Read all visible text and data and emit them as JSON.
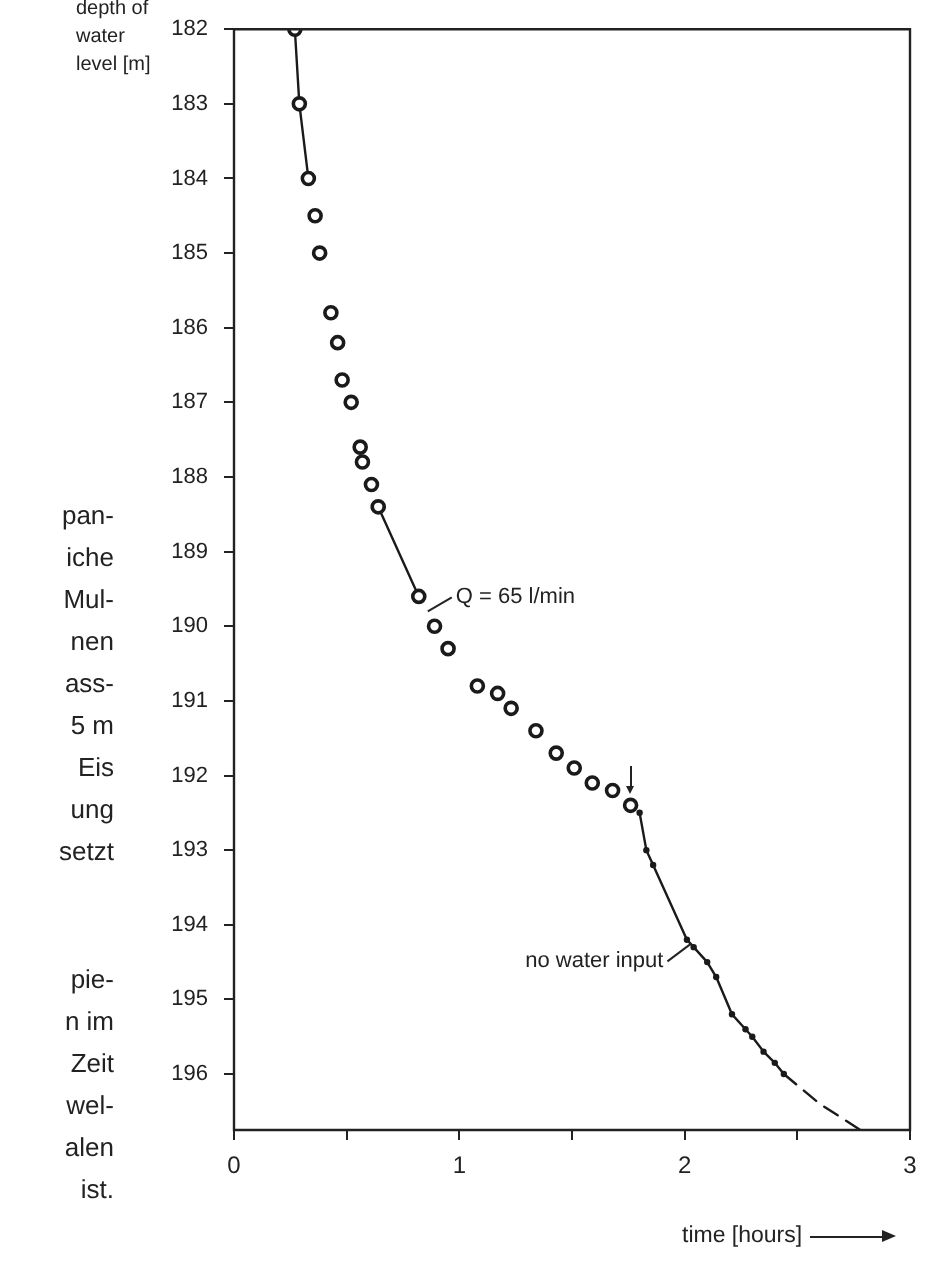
{
  "chart_data": {
    "type": "scatter",
    "xlabel": "time [hours]",
    "ylabel": "depth of water level [m]",
    "xlim": [
      0,
      3
    ],
    "ylim": [
      196.75,
      182
    ],
    "xticks": [
      0,
      {
        "value": 0.5,
        "label": null
      },
      1,
      {
        "value": 1.5,
        "label": null
      },
      2,
      {
        "value": 2.5,
        "label": null
      },
      3
    ],
    "yticks": [
      182,
      183,
      184,
      185,
      186,
      187,
      188,
      189,
      190,
      191,
      192,
      193,
      194,
      195,
      196
    ],
    "grid": false,
    "legend": false,
    "series": [
      {
        "type": "scatter",
        "marker": "circle",
        "color": "#1a1a1a",
        "x": [
          0.27,
          0.29,
          0.33,
          0.36,
          0.38,
          0.43,
          0.46,
          0.48,
          0.52,
          0.56,
          0.57,
          0.61,
          0.64,
          0.82,
          0.89,
          0.95,
          1.08,
          1.17,
          1.23,
          1.34,
          1.43,
          1.51,
          1.59,
          1.68,
          1.76
        ],
        "values": [
          182.0,
          183.0,
          184.0,
          184.5,
          185.0,
          185.8,
          186.2,
          186.7,
          187.0,
          187.6,
          187.8,
          188.1,
          188.4,
          189.6,
          190.0,
          190.3,
          190.8,
          190.9,
          191.1,
          191.4,
          191.7,
          191.9,
          192.1,
          192.2,
          192.4
        ]
      },
      {
        "type": "line",
        "marker": "none",
        "line_style": "solid",
        "color": "#1a1a1a",
        "x": [
          0.27,
          0.29,
          0.33,
          0.5,
          0.64,
          0.82
        ],
        "values": [
          182.0,
          183.0,
          184.0,
          null,
          188.4,
          189.6
        ]
      },
      {
        "type": "line",
        "marker": "circle",
        "line_style": "solid",
        "color": "#1a1a1a",
        "x": [
          1.8,
          1.83,
          1.86,
          2.01,
          2.04,
          2.1,
          2.14,
          2.21,
          2.27,
          2.3,
          2.35,
          2.4,
          2.44
        ],
        "values": [
          192.5,
          193.0,
          193.2,
          194.2,
          194.3,
          194.5,
          194.7,
          195.2,
          195.4,
          195.5,
          195.7,
          195.85,
          196.0
        ]
      },
      {
        "type": "line",
        "marker": "none",
        "line_style": "dashed",
        "color": "#1a1a1a",
        "x": [
          2.44,
          2.6,
          2.78
        ],
        "values": [
          196.0,
          196.4,
          196.75
        ]
      }
    ],
    "annotations": [
      {
        "text": "Q = 65 l/min",
        "x": 0.86,
        "y": 189.8
      },
      {
        "text": "no water input",
        "x": 2.03,
        "y": 194.25
      },
      "pan-\niche\nMul-\nnen\nass-\n5 m\nEis\nung\nsetzt",
      "pie-\nn im\nZeit\nwel-\nalen\nist."
    ]
  }
}
